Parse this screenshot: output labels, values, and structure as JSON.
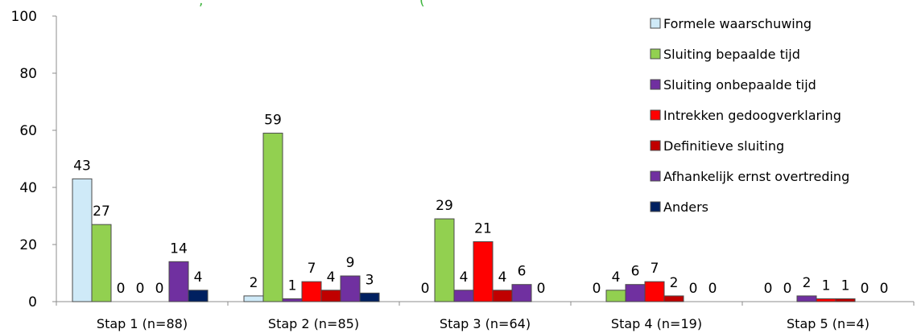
{
  "chart_data": {
    "type": "bar",
    "title_fragments": [
      ",",
      "("
    ],
    "categories": [
      "Stap 1 (n=88)",
      "Stap 2 (n=85)",
      "Stap 3 (n=64)",
      "Stap 4 (n=19)",
      "Stap 5 (n=4)"
    ],
    "series": [
      {
        "name": "Formele waarschuwing",
        "color": "#cfeaf8",
        "values": [
          43,
          2,
          0,
          0,
          0
        ]
      },
      {
        "name": "Sluiting bepaalde tijd",
        "color": "#92d050",
        "values": [
          27,
          59,
          29,
          4,
          0
        ]
      },
      {
        "name": "Sluiting onbepaalde tijd",
        "color": "#7030a0",
        "values": [
          0,
          1,
          4,
          6,
          2
        ]
      },
      {
        "name": "Intrekken gedoogverklaring",
        "color": "#ff0000",
        "values": [
          0,
          7,
          21,
          7,
          1
        ]
      },
      {
        "name": "Definitieve sluiting",
        "color": "#c00000",
        "values": [
          0,
          4,
          4,
          2,
          1
        ]
      },
      {
        "name": "Afhankelijk ernst overtreding",
        "color": "#7030a0",
        "values": [
          14,
          9,
          6,
          0,
          0
        ]
      },
      {
        "name": "Anders",
        "color": "#002060",
        "values": [
          4,
          3,
          0,
          0,
          0
        ]
      }
    ],
    "ylim": [
      0,
      100
    ],
    "yticks": [
      0,
      20,
      40,
      60,
      80,
      100
    ],
    "grid": false,
    "legend_position": "top-right"
  }
}
